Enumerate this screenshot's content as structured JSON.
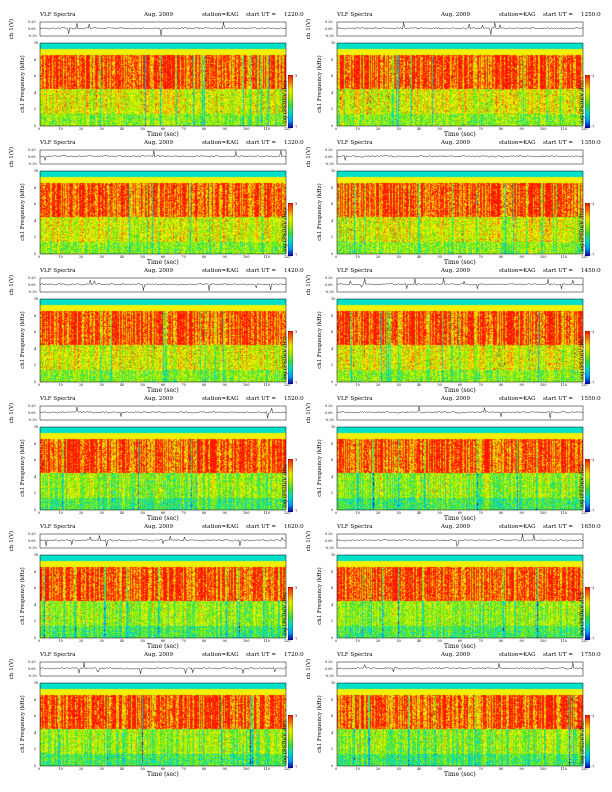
{
  "common": {
    "instrument": "VLF Spectra",
    "date": "Aug. 2009",
    "station": "station=KAG",
    "start_prefix": "start  UT  =",
    "ch_label": "ch 1(V)",
    "freq_label": "ch1\nFrequency (kHz)",
    "cbar_label": "log (PSD)(V /Hz)",
    "x_label": "Time  (sec)"
  },
  "panels": [
    {
      "start_ut": "1220:0"
    },
    {
      "start_ut": "1250:0"
    },
    {
      "start_ut": "1320:0"
    },
    {
      "start_ut": "1350:0"
    },
    {
      "start_ut": "1420:0"
    },
    {
      "start_ut": "1450:0"
    },
    {
      "start_ut": "1520:0"
    },
    {
      "start_ut": "1550:0"
    },
    {
      "start_ut": "1620:0"
    },
    {
      "start_ut": "1650:0"
    },
    {
      "start_ut": "1720:0"
    },
    {
      "start_ut": "1750:0"
    }
  ],
  "chart_data": {
    "type": "heatmap",
    "x_ticks": [
      "0",
      "10",
      "20",
      "30",
      "40",
      "50",
      "60",
      "70",
      "80",
      "90",
      "100",
      "110",
      "120"
    ],
    "xlim": [
      0,
      120
    ],
    "freq_ticks": [
      "0",
      "2",
      "4",
      "6",
      "8",
      "10"
    ],
    "ylim_khz": [
      0,
      10
    ],
    "ch_ticks": [
      "0.20",
      "0.00",
      "-0.20"
    ],
    "ch_ylim_v": [
      -0.2,
      0.2
    ],
    "cbar_ticks": [
      "-3",
      "-7"
    ],
    "colors": [
      "#0000b4",
      "#00a0ff",
      "#00e0c8",
      "#40e040",
      "#a0f000",
      "#f0f000",
      "#ff8000",
      "#ff1800"
    ]
  }
}
